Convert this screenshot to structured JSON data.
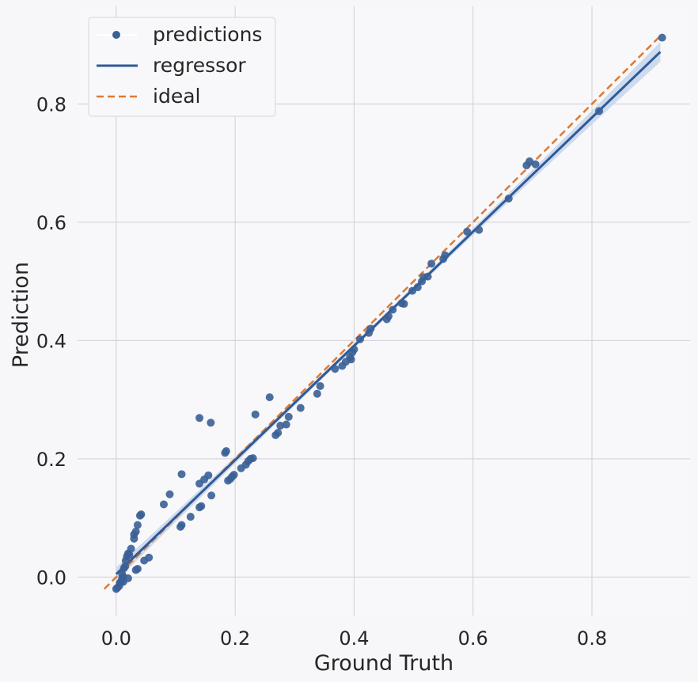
{
  "chart_data": {
    "type": "scatter",
    "xlabel": "Ground Truth",
    "ylabel": "Prediction",
    "xlim": [
      -0.065,
      0.965
    ],
    "ylim": [
      -0.065,
      0.965
    ],
    "x_ticks": [
      "0.0",
      "0.2",
      "0.4",
      "0.6",
      "0.8"
    ],
    "y_ticks": [
      "0.0",
      "0.2",
      "0.4",
      "0.6",
      "0.8"
    ],
    "x_tick_values": [
      0.0,
      0.2,
      0.4,
      0.6,
      0.8
    ],
    "y_tick_values": [
      0.0,
      0.2,
      0.4,
      0.6,
      0.8
    ],
    "grid": true,
    "legend_position": "top-left",
    "colors": {
      "predictions": "#3a5f96",
      "regressor": "#2e5a98",
      "band": "#c7d5ea",
      "ideal": "#dd7a35",
      "grid": "#cfcfd6",
      "background": "#f7f7f9"
    },
    "legend": [
      "predictions",
      "regressor",
      "ideal"
    ],
    "series": [
      {
        "name": "predictions",
        "kind": "scatter",
        "points": [
          [
            0.0,
            -0.02
          ],
          [
            0.002,
            -0.018
          ],
          [
            0.005,
            -0.015
          ],
          [
            0.006,
            -0.01
          ],
          [
            0.008,
            -0.008
          ],
          [
            0.01,
            -0.002
          ],
          [
            0.012,
            0.0
          ],
          [
            0.01,
            0.005
          ],
          [
            0.013,
            0.015
          ],
          [
            0.015,
            0.018
          ],
          [
            0.016,
            0.028
          ],
          [
            0.018,
            0.035
          ],
          [
            0.02,
            0.04
          ],
          [
            0.022,
            0.038
          ],
          [
            0.025,
            0.048
          ],
          [
            0.02,
            -0.002
          ],
          [
            0.012,
            -0.008
          ],
          [
            0.03,
            0.065
          ],
          [
            0.03,
            0.072
          ],
          [
            0.033,
            0.077
          ],
          [
            0.036,
            0.088
          ],
          [
            0.04,
            0.104
          ],
          [
            0.042,
            0.106
          ],
          [
            0.033,
            0.012
          ],
          [
            0.036,
            0.014
          ],
          [
            0.047,
            0.028
          ],
          [
            0.055,
            0.033
          ],
          [
            0.08,
            0.123
          ],
          [
            0.09,
            0.14
          ],
          [
            0.108,
            0.085
          ],
          [
            0.11,
            0.088
          ],
          [
            0.11,
            0.174
          ],
          [
            0.125,
            0.102
          ],
          [
            0.14,
            0.118
          ],
          [
            0.143,
            0.12
          ],
          [
            0.14,
            0.158
          ],
          [
            0.148,
            0.165
          ],
          [
            0.155,
            0.172
          ],
          [
            0.16,
            0.138
          ],
          [
            0.14,
            0.269
          ],
          [
            0.159,
            0.261
          ],
          [
            0.183,
            0.21
          ],
          [
            0.185,
            0.213
          ],
          [
            0.188,
            0.163
          ],
          [
            0.192,
            0.166
          ],
          [
            0.195,
            0.17
          ],
          [
            0.198,
            0.173
          ],
          [
            0.21,
            0.184
          ],
          [
            0.218,
            0.19
          ],
          [
            0.222,
            0.196
          ],
          [
            0.226,
            0.2
          ],
          [
            0.23,
            0.201
          ],
          [
            0.234,
            0.275
          ],
          [
            0.258,
            0.304
          ],
          [
            0.268,
            0.24
          ],
          [
            0.272,
            0.244
          ],
          [
            0.276,
            0.256
          ],
          [
            0.286,
            0.258
          ],
          [
            0.29,
            0.271
          ],
          [
            0.31,
            0.286
          ],
          [
            0.338,
            0.31
          ],
          [
            0.343,
            0.323
          ],
          [
            0.368,
            0.352
          ],
          [
            0.38,
            0.357
          ],
          [
            0.386,
            0.364
          ],
          [
            0.393,
            0.372
          ],
          [
            0.395,
            0.368
          ],
          [
            0.397,
            0.38
          ],
          [
            0.4,
            0.385
          ],
          [
            0.41,
            0.402
          ],
          [
            0.425,
            0.413
          ],
          [
            0.428,
            0.42
          ],
          [
            0.455,
            0.436
          ],
          [
            0.458,
            0.441
          ],
          [
            0.465,
            0.452
          ],
          [
            0.48,
            0.463
          ],
          [
            0.484,
            0.462
          ],
          [
            0.498,
            0.484
          ],
          [
            0.507,
            0.49
          ],
          [
            0.514,
            0.5
          ],
          [
            0.517,
            0.507
          ],
          [
            0.524,
            0.508
          ],
          [
            0.53,
            0.53
          ],
          [
            0.55,
            0.538
          ],
          [
            0.553,
            0.544
          ],
          [
            0.59,
            0.584
          ],
          [
            0.61,
            0.587
          ],
          [
            0.66,
            0.64
          ],
          [
            0.69,
            0.696
          ],
          [
            0.695,
            0.703
          ],
          [
            0.705,
            0.698
          ],
          [
            0.812,
            0.788
          ],
          [
            0.918,
            0.912
          ]
        ]
      },
      {
        "name": "regressor",
        "kind": "line",
        "x": [
          0.0,
          0.915
        ],
        "y": [
          0.005,
          0.888
        ]
      },
      {
        "name": "ideal",
        "kind": "line",
        "x": [
          -0.02,
          0.918
        ],
        "y": [
          -0.02,
          0.918
        ]
      }
    ]
  }
}
